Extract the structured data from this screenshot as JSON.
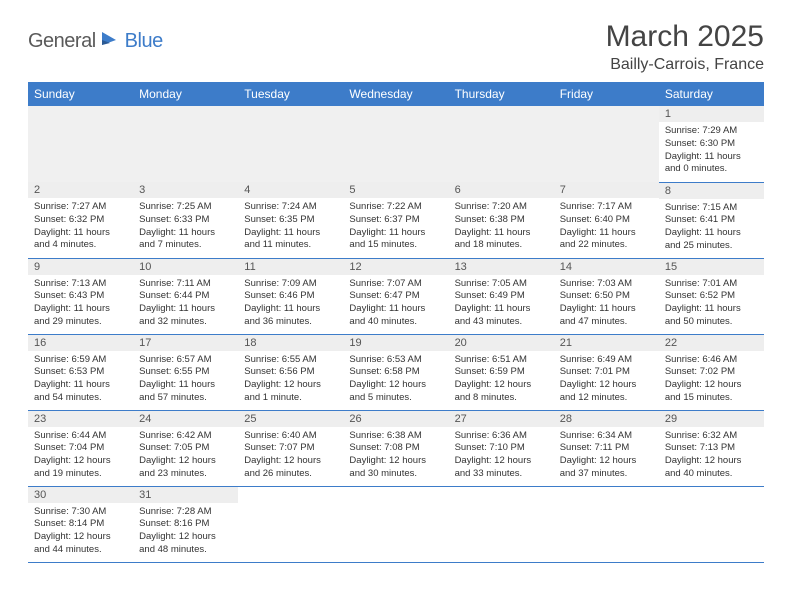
{
  "brand": {
    "part1": "General",
    "part2": "Blue"
  },
  "title": "March 2025",
  "location": "Bailly-Carrois, France",
  "colors": {
    "header_bg": "#3d7cc9",
    "header_text": "#ffffff",
    "daynum_bg": "#eeeeee",
    "border": "#3d7cc9",
    "brand_gray": "#5a5a5a",
    "brand_blue": "#3d7cc9"
  },
  "weekdays": [
    "Sunday",
    "Monday",
    "Tuesday",
    "Wednesday",
    "Thursday",
    "Friday",
    "Saturday"
  ],
  "weeks": [
    [
      null,
      null,
      null,
      null,
      null,
      null,
      {
        "n": "1",
        "sunrise": "7:29 AM",
        "sunset": "6:30 PM",
        "daylight": "11 hours and 0 minutes."
      }
    ],
    [
      {
        "n": "2",
        "sunrise": "7:27 AM",
        "sunset": "6:32 PM",
        "daylight": "11 hours and 4 minutes."
      },
      {
        "n": "3",
        "sunrise": "7:25 AM",
        "sunset": "6:33 PM",
        "daylight": "11 hours and 7 minutes."
      },
      {
        "n": "4",
        "sunrise": "7:24 AM",
        "sunset": "6:35 PM",
        "daylight": "11 hours and 11 minutes."
      },
      {
        "n": "5",
        "sunrise": "7:22 AM",
        "sunset": "6:37 PM",
        "daylight": "11 hours and 15 minutes."
      },
      {
        "n": "6",
        "sunrise": "7:20 AM",
        "sunset": "6:38 PM",
        "daylight": "11 hours and 18 minutes."
      },
      {
        "n": "7",
        "sunrise": "7:17 AM",
        "sunset": "6:40 PM",
        "daylight": "11 hours and 22 minutes."
      },
      {
        "n": "8",
        "sunrise": "7:15 AM",
        "sunset": "6:41 PM",
        "daylight": "11 hours and 25 minutes."
      }
    ],
    [
      {
        "n": "9",
        "sunrise": "7:13 AM",
        "sunset": "6:43 PM",
        "daylight": "11 hours and 29 minutes."
      },
      {
        "n": "10",
        "sunrise": "7:11 AM",
        "sunset": "6:44 PM",
        "daylight": "11 hours and 32 minutes."
      },
      {
        "n": "11",
        "sunrise": "7:09 AM",
        "sunset": "6:46 PM",
        "daylight": "11 hours and 36 minutes."
      },
      {
        "n": "12",
        "sunrise": "7:07 AM",
        "sunset": "6:47 PM",
        "daylight": "11 hours and 40 minutes."
      },
      {
        "n": "13",
        "sunrise": "7:05 AM",
        "sunset": "6:49 PM",
        "daylight": "11 hours and 43 minutes."
      },
      {
        "n": "14",
        "sunrise": "7:03 AM",
        "sunset": "6:50 PM",
        "daylight": "11 hours and 47 minutes."
      },
      {
        "n": "15",
        "sunrise": "7:01 AM",
        "sunset": "6:52 PM",
        "daylight": "11 hours and 50 minutes."
      }
    ],
    [
      {
        "n": "16",
        "sunrise": "6:59 AM",
        "sunset": "6:53 PM",
        "daylight": "11 hours and 54 minutes."
      },
      {
        "n": "17",
        "sunrise": "6:57 AM",
        "sunset": "6:55 PM",
        "daylight": "11 hours and 57 minutes."
      },
      {
        "n": "18",
        "sunrise": "6:55 AM",
        "sunset": "6:56 PM",
        "daylight": "12 hours and 1 minute."
      },
      {
        "n": "19",
        "sunrise": "6:53 AM",
        "sunset": "6:58 PM",
        "daylight": "12 hours and 5 minutes."
      },
      {
        "n": "20",
        "sunrise": "6:51 AM",
        "sunset": "6:59 PM",
        "daylight": "12 hours and 8 minutes."
      },
      {
        "n": "21",
        "sunrise": "6:49 AM",
        "sunset": "7:01 PM",
        "daylight": "12 hours and 12 minutes."
      },
      {
        "n": "22",
        "sunrise": "6:46 AM",
        "sunset": "7:02 PM",
        "daylight": "12 hours and 15 minutes."
      }
    ],
    [
      {
        "n": "23",
        "sunrise": "6:44 AM",
        "sunset": "7:04 PM",
        "daylight": "12 hours and 19 minutes."
      },
      {
        "n": "24",
        "sunrise": "6:42 AM",
        "sunset": "7:05 PM",
        "daylight": "12 hours and 23 minutes."
      },
      {
        "n": "25",
        "sunrise": "6:40 AM",
        "sunset": "7:07 PM",
        "daylight": "12 hours and 26 minutes."
      },
      {
        "n": "26",
        "sunrise": "6:38 AM",
        "sunset": "7:08 PM",
        "daylight": "12 hours and 30 minutes."
      },
      {
        "n": "27",
        "sunrise": "6:36 AM",
        "sunset": "7:10 PM",
        "daylight": "12 hours and 33 minutes."
      },
      {
        "n": "28",
        "sunrise": "6:34 AM",
        "sunset": "7:11 PM",
        "daylight": "12 hours and 37 minutes."
      },
      {
        "n": "29",
        "sunrise": "6:32 AM",
        "sunset": "7:13 PM",
        "daylight": "12 hours and 40 minutes."
      }
    ],
    [
      {
        "n": "30",
        "sunrise": "7:30 AM",
        "sunset": "8:14 PM",
        "daylight": "12 hours and 44 minutes."
      },
      {
        "n": "31",
        "sunrise": "7:28 AM",
        "sunset": "8:16 PM",
        "daylight": "12 hours and 48 minutes."
      },
      null,
      null,
      null,
      null,
      null
    ]
  ],
  "labels": {
    "sunrise": "Sunrise:",
    "sunset": "Sunset:",
    "daylight": "Daylight:"
  }
}
